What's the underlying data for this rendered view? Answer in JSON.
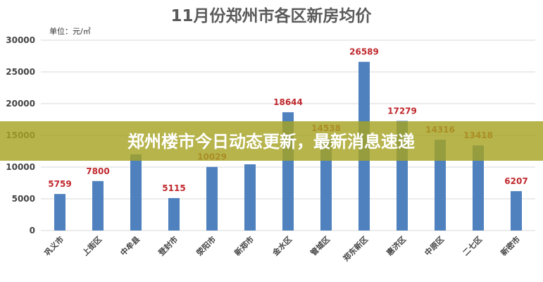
{
  "chart_data": {
    "type": "bar",
    "title": "11月份郑州市各区新房均价",
    "unit_label": "单位：元/㎡",
    "categories": [
      "巩义市",
      "上街区",
      "中牟县",
      "登封市",
      "荥阳市",
      "新郑市",
      "金水区",
      "管城区",
      "郑东新区",
      "惠济区",
      "中原区",
      "二七区",
      "新密市"
    ],
    "values": [
      5759,
      7800,
      12000,
      5115,
      10029,
      10434,
      18644,
      14538,
      26589,
      17279,
      14316,
      13418,
      6207
    ],
    "data_labels": [
      "5759",
      "7800",
      "",
      "5115",
      "10029",
      "",
      "18644",
      "14538",
      "26589",
      "17279",
      "14316",
      "13418",
      "6207"
    ],
    "yticks": [
      "0",
      "5000",
      "10000",
      "15000",
      "20000",
      "25000",
      "30000"
    ],
    "ylim": [
      0,
      30000
    ],
    "grid": true,
    "bar_color": "#4e81bd",
    "label_color": "#c0282d"
  },
  "banner": {
    "text": "郑州楼市今日动态更新，最新消息速递",
    "color": "#a6a423"
  }
}
